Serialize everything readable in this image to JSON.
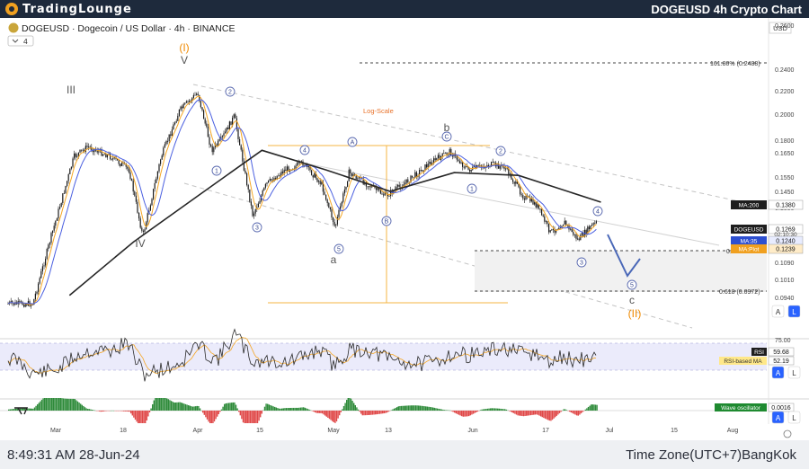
{
  "header": {
    "brand": "TradingLounge",
    "chart_heading": "DOGEUSD 4h Crypto Chart"
  },
  "symbol_line": "DOGEUSD · Dogecoin / US Dollar · 4h · BINANCE",
  "indicator_count": "4",
  "currency": "USD",
  "footer": {
    "clock": "8:49:31 AM 28-Jun-24",
    "timezone": "Time Zone(UTC+7)BangKok"
  },
  "buttons": {
    "auto": "A",
    "log": "L"
  },
  "colors": {
    "candle": "#1b1b1b",
    "ma_fast": "#f5a623",
    "ma_mid": "#4a5fe0",
    "ma_200": "#262626",
    "wave_orange": "#f08a00",
    "channel": "#bfbfbf",
    "rsi": "#2a2a2a",
    "rsi_band": "#e6e6fa",
    "osc_up": "#2e8b3a",
    "osc_down": "#e04848",
    "arrow": "#4a68b8"
  },
  "chart_data": {
    "type": "line",
    "subtype": "candlestick",
    "scale": "log",
    "y_axis_range": [
      0.09,
      0.27
    ],
    "x_tick_labels": [
      "Mar",
      "18",
      "Apr",
      "15",
      "May",
      "13",
      "Jun",
      "17",
      "Jul",
      "15",
      "Aug"
    ],
    "y_tick_labels": [
      "0.2600",
      "0.2400",
      "0.2200",
      "0.2000",
      "0.1800",
      "0.1650",
      "0.1550",
      "0.1450",
      "0.1330",
      "0.1190",
      "0.1090",
      "0.1010",
      "0.0940"
    ],
    "price_path": [
      {
        "date": "2024-02-25",
        "price": 0.0866
      },
      {
        "date": "2024-02-29",
        "price": 0.118
      },
      {
        "date": "2024-03-05",
        "price": 0.17
      },
      {
        "date": "2024-03-08",
        "price": 0.178
      },
      {
        "date": "2024-03-13",
        "price": 0.17
      },
      {
        "date": "2024-03-17",
        "price": 0.16
      },
      {
        "date": "2024-03-20",
        "price": 0.118
      },
      {
        "date": "2024-03-24",
        "price": 0.17
      },
      {
        "date": "2024-03-28",
        "price": 0.21
      },
      {
        "date": "2024-04-01",
        "price": 0.228
      },
      {
        "date": "2024-04-04",
        "price": 0.175
      },
      {
        "date": "2024-04-06",
        "price": 0.183
      },
      {
        "date": "2024-04-09",
        "price": 0.205
      },
      {
        "date": "2024-04-13",
        "price": 0.13
      },
      {
        "date": "2024-04-16",
        "price": 0.15
      },
      {
        "date": "2024-04-20",
        "price": 0.16
      },
      {
        "date": "2024-04-24",
        "price": 0.165
      },
      {
        "date": "2024-04-28",
        "price": 0.15
      },
      {
        "date": "2024-05-01",
        "price": 0.123
      },
      {
        "date": "2024-05-04",
        "price": 0.158
      },
      {
        "date": "2024-05-08",
        "price": 0.15
      },
      {
        "date": "2024-05-12",
        "price": 0.142
      },
      {
        "date": "2024-05-16",
        "price": 0.15
      },
      {
        "date": "2024-05-22",
        "price": 0.166
      },
      {
        "date": "2024-05-26",
        "price": 0.174
      },
      {
        "date": "2024-05-30",
        "price": 0.16
      },
      {
        "date": "2024-06-04",
        "price": 0.164
      },
      {
        "date": "2024-06-07",
        "price": 0.162
      },
      {
        "date": "2024-06-11",
        "price": 0.142
      },
      {
        "date": "2024-06-14",
        "price": 0.136
      },
      {
        "date": "2024-06-17",
        "price": 0.12
      },
      {
        "date": "2024-06-20",
        "price": 0.126
      },
      {
        "date": "2024-06-23",
        "price": 0.116
      },
      {
        "date": "2024-06-26",
        "price": 0.124
      },
      {
        "date": "2024-06-28",
        "price": 0.1269
      }
    ],
    "ma200_path": [
      {
        "date": "2024-03-04",
        "price": 0.09
      },
      {
        "date": "2024-03-18",
        "price": 0.115
      },
      {
        "date": "2024-04-01",
        "price": 0.142
      },
      {
        "date": "2024-04-15",
        "price": 0.175
      },
      {
        "date": "2024-04-29",
        "price": 0.16
      },
      {
        "date": "2024-05-13",
        "price": 0.145
      },
      {
        "date": "2024-05-27",
        "price": 0.158
      },
      {
        "date": "2024-06-10",
        "price": 0.156
      },
      {
        "date": "2024-06-28",
        "price": 0.138
      }
    ],
    "price_labels": [
      {
        "name": "MA:200",
        "value": "0.1380",
        "price": 0.138
      },
      {
        "name": "DOGEUSD",
        "value": "0.1269",
        "price": 0.1269,
        "countdown": "02:10:30"
      },
      {
        "name": "MA:35",
        "value": "0.1240",
        "price": 0.124
      },
      {
        "name": "MA:Plot",
        "value": "0.1239",
        "price": 0.1232
      }
    ],
    "fib_levels": [
      {
        "label": "161.80% (0.2488)",
        "price": 0.2488
      },
      {
        "label": "0.5",
        "price": 0.115
      },
      {
        "label": "0.618 (0.0972)",
        "price": 0.0972
      }
    ],
    "annotations": {
      "log_scale": "Log-Scale",
      "major_waves": [
        {
          "label": "(I)",
          "date": "2024-04-01"
        },
        {
          "label": "V",
          "date": "2024-04-01"
        },
        {
          "label": "III",
          "date": "2024-03-05"
        },
        {
          "label": "IV",
          "date": "2024-03-20"
        },
        {
          "label": "(II)",
          "date": "2024-07-07"
        }
      ],
      "wxy_labels": [
        "a",
        "b",
        "c"
      ],
      "circle_labels": [
        "1",
        "2",
        "3",
        "4",
        "5",
        "A",
        "B",
        "C",
        "1",
        "2",
        "3",
        "4",
        "5",
        "1",
        "2",
        "3",
        "4",
        "5"
      ]
    },
    "rsi": {
      "label": "RSI",
      "value": "59.68",
      "ma_label": "RSI-based MA",
      "ma_value": "52.19",
      "level_label": "75.00",
      "bands": [
        70,
        30
      ]
    },
    "wave_oscillator": {
      "label": "Wave oscillator",
      "value": "0.0016"
    }
  }
}
